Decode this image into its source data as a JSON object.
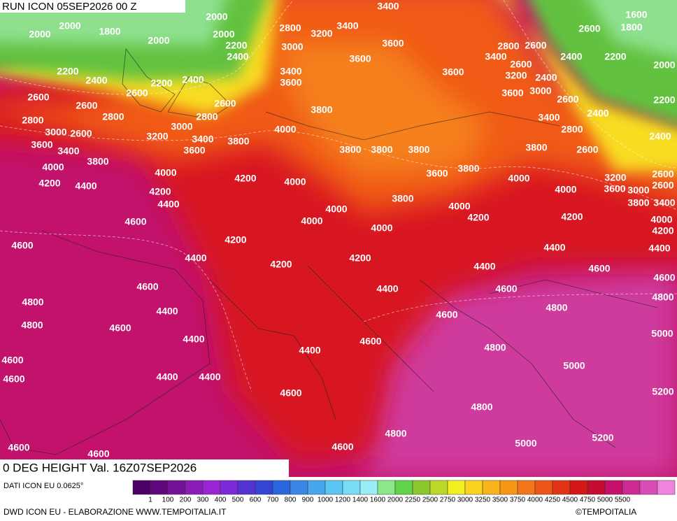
{
  "header": {
    "run": "RUN ICON 05SEP2026 00 Z"
  },
  "map": {
    "title": "0 DEG HEIGHT Val. 16Z07SEP2026",
    "contour_labels": [
      2000,
      2000,
      2000,
      1800,
      2000,
      2000,
      2200,
      2400,
      3400,
      2800,
      3200,
      3400,
      3000,
      3600,
      3600,
      1600,
      1800,
      2600,
      2800,
      2600,
      3400,
      2400,
      2200,
      2000,
      2600,
      3200,
      2400,
      3600,
      3400,
      3600,
      2200,
      2400,
      2200,
      2400,
      2600,
      2600,
      2600,
      2600,
      3600,
      3000,
      2600,
      2200,
      3800,
      2400,
      2800,
      2800,
      2800,
      3400,
      3000,
      2600,
      3200,
      3000,
      3400,
      3800,
      4000,
      2800,
      2400,
      3600,
      3400,
      3600,
      3800,
      3800,
      3800,
      3800,
      2600,
      3800,
      4000,
      4000,
      4200,
      4000,
      3600,
      3800,
      4000,
      3200,
      2600,
      4200,
      4400,
      4200,
      4000,
      3600,
      3000,
      2600,
      4400,
      3800,
      3800,
      3400,
      4000,
      4000,
      4200,
      4200,
      4000,
      4600,
      4000,
      4000,
      4200,
      4200,
      4600,
      4400,
      4400,
      4400,
      4200,
      4200,
      4400,
      4600,
      4600,
      4600,
      4400,
      4600,
      4800,
      4800,
      4800,
      4400,
      4600,
      4800,
      4600,
      4400,
      4600,
      5000,
      4800,
      4400,
      4600,
      5000,
      4400,
      4400,
      4600,
      4600,
      5200,
      4800,
      4800,
      5200,
      5000,
      4600,
      4600,
      4600
    ]
  },
  "legend": {
    "source": "DATI ICON EU 0.0625°",
    "colors": [
      "#4a0066",
      "#62087f",
      "#75129a",
      "#8a1cb8",
      "#9a24d4",
      "#7a2ad8",
      "#5532d2",
      "#3546d6",
      "#2c66de",
      "#3a86e6",
      "#48a6ee",
      "#5ac6f4",
      "#78dcf6",
      "#9aeef6",
      "#8ae88a",
      "#62d44a",
      "#8cc82c",
      "#bcd82a",
      "#f2f020",
      "#f8d41e",
      "#f8b41a",
      "#f89618",
      "#f47618",
      "#ee5618",
      "#e43418",
      "#d41818",
      "#c40c30",
      "#c6106a",
      "#cc2a92",
      "#d84cb8",
      "#f084dc"
    ],
    "labels": [
      1,
      100,
      200,
      300,
      400,
      500,
      600,
      700,
      800,
      900,
      1000,
      1200,
      1400,
      1600,
      2000,
      2250,
      2500,
      2750,
      3000,
      3250,
      3500,
      3750,
      4000,
      4250,
      4500,
      4750,
      5000,
      5500
    ]
  },
  "footer": {
    "credit": "DWD ICON EU - ELABORAZIONE WWW.TEMPOITALIA.IT",
    "copyright": "©TEMPOITALIA"
  }
}
